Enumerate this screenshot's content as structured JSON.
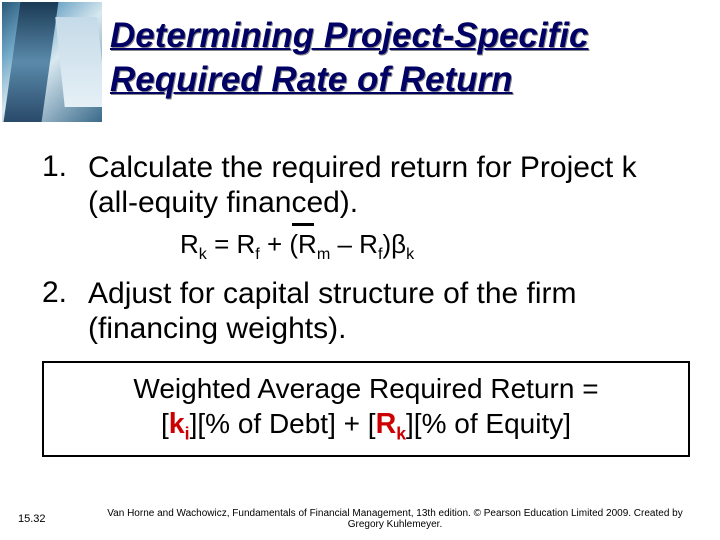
{
  "title": "Determining Project-Specific Required Rate of Return",
  "item1": {
    "num": "1.",
    "text": "Calculate the required return for Project k (all-equity financed)."
  },
  "formula1": {
    "lhs_R": "R",
    "lhs_k": "k",
    "eq": " = ",
    "rf_R": "R",
    "rf_f": "f",
    "plus": " + (",
    "rm_R": "R",
    "rm_m": "m",
    "minus": " – ",
    "rf2_R": "R",
    "rf2_f": "f",
    "close": ")",
    "beta": "β",
    "beta_k": "k"
  },
  "item2": {
    "num": "2.",
    "text": "Adjust for capital structure of the firm (financing weights)."
  },
  "formula2": {
    "line1": "Weighted Average Required Return =",
    "open1": "[",
    "ki_k": "k",
    "ki_i": "i",
    "mid1": "][% of Debt] + [",
    "rk_R": "R",
    "rk_k": "k",
    "close2": "][% of Equity]"
  },
  "footer": {
    "slidenum": "15.32",
    "credit": "Van Horne and Wachowicz, Fundamentals of Financial Management, 13th edition. © Pearson Education Limited 2009. Created by Gregory Kuhlemeyer."
  }
}
